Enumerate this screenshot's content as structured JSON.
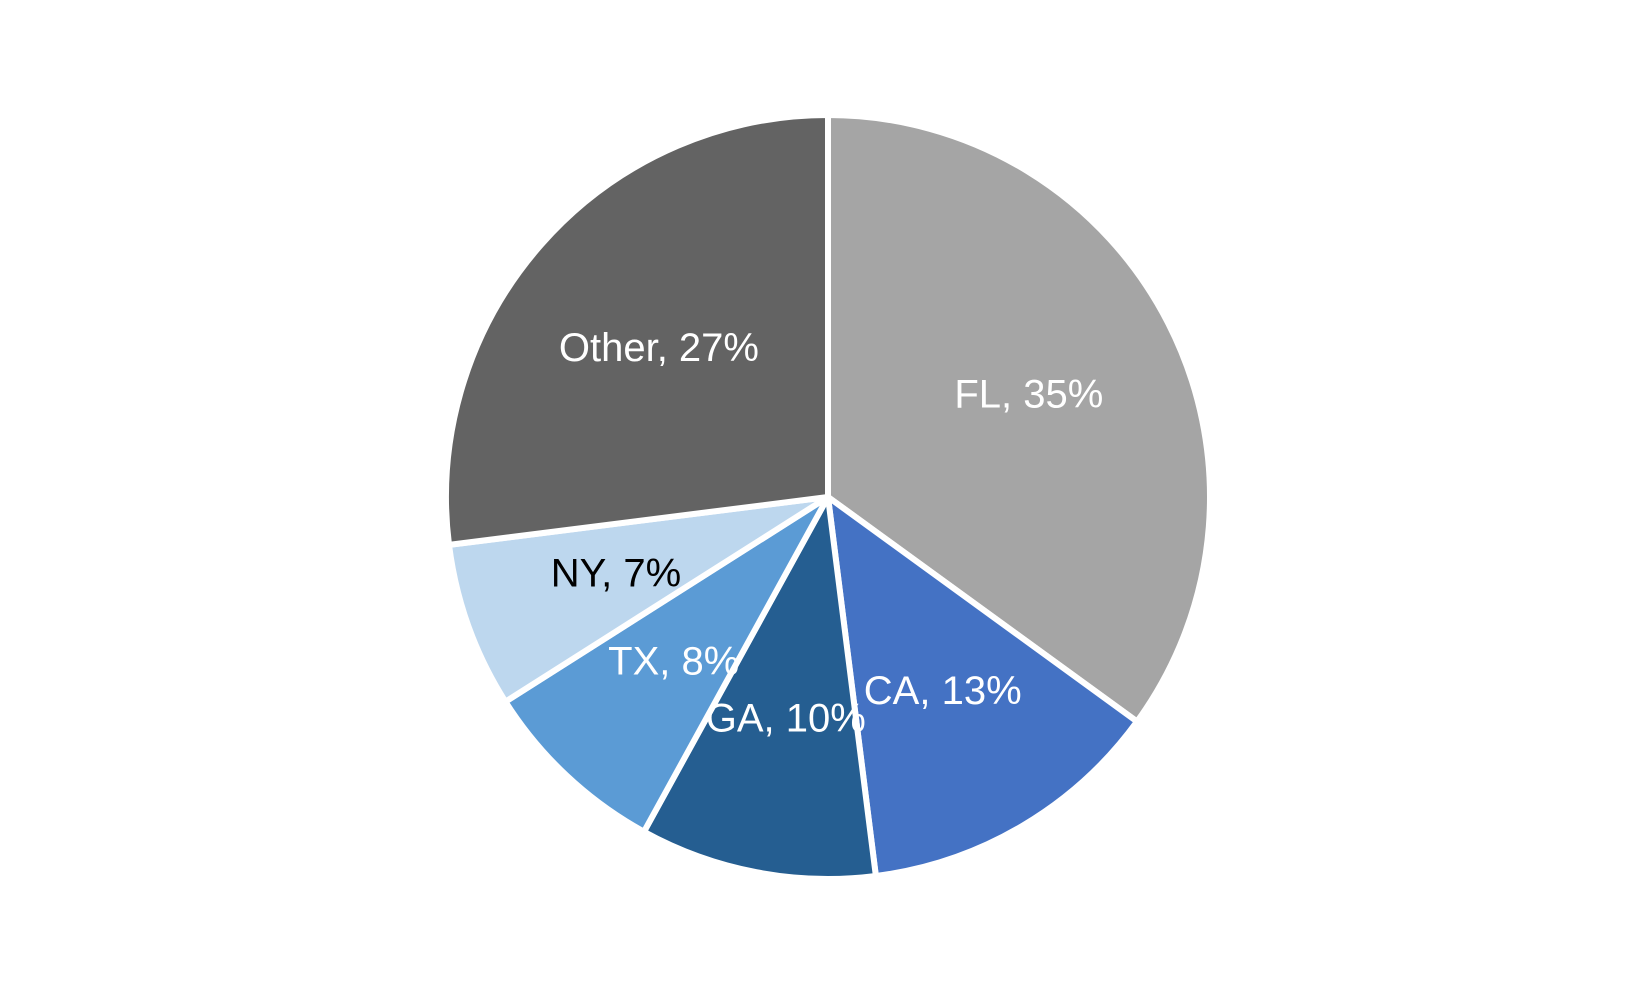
{
  "chart_data": {
    "type": "pie",
    "start": "top",
    "direction": "clockwise",
    "slices": [
      {
        "label": "FL",
        "value": 35,
        "text": "FL, 35%",
        "color": "#A5A5A5",
        "label_color": "#FFFFFF"
      },
      {
        "label": "CA",
        "value": 13,
        "text": "CA, 13%",
        "color": "#4472C4",
        "label_color": "#FFFFFF"
      },
      {
        "label": "GA",
        "value": 10,
        "text": "GA, 10%",
        "color": "#255E91",
        "label_color": "#FFFFFF"
      },
      {
        "label": "TX",
        "value": 8,
        "text": "TX, 8%",
        "color": "#5B9BD5",
        "label_color": "#FFFFFF"
      },
      {
        "label": "NY",
        "value": 7,
        "text": "NY, 7%",
        "color": "#BDD7EE",
        "label_color": "#000000"
      },
      {
        "label": "Other",
        "value": 27,
        "text": "Other, 27%",
        "color": "#636363",
        "label_color": "#FFFFFF"
      }
    ]
  }
}
